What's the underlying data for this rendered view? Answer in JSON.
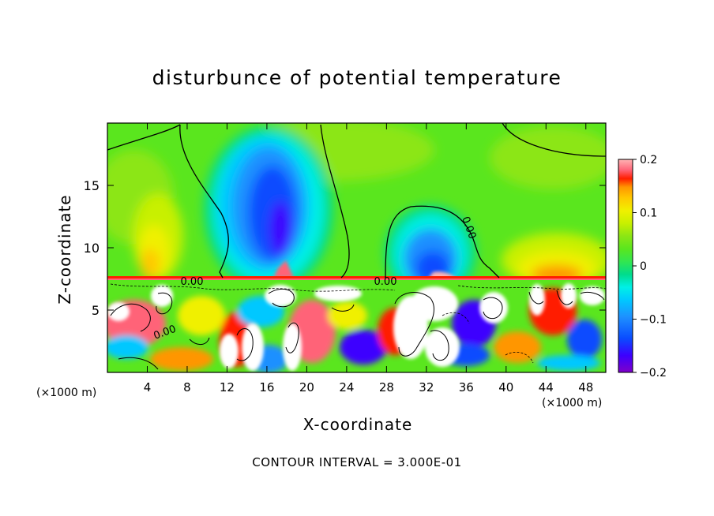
{
  "chart_data": {
    "type": "heatmap",
    "title": "disturbunce of potential temperature",
    "xlabel": "X-coordinate",
    "ylabel": "Z-coordinate",
    "x_unit_label": "(×1000 m)",
    "x_ticks": [
      4,
      8,
      12,
      16,
      20,
      24,
      28,
      32,
      36,
      40,
      44,
      48
    ],
    "y_ticks": [
      5,
      10,
      15
    ],
    "xlim": [
      0,
      50
    ],
    "ylim": [
      0,
      20
    ],
    "colorbar": {
      "ticks": [
        "0.2",
        "0.1",
        "0",
        "−0.1",
        "−0.2"
      ],
      "tick_values": [
        0.2,
        0.1,
        0,
        -0.1,
        -0.2
      ],
      "range": [
        -0.2,
        0.2
      ],
      "colors": [
        "#7f00c8",
        "#3c00ff",
        "#0a4cff",
        "#1e90ff",
        "#00c8ff",
        "#00f0e6",
        "#00dc8c",
        "#32e650",
        "#5ae61e",
        "#8ce614",
        "#c8f000",
        "#f0f000",
        "#ffc800",
        "#ff9600",
        "#ff5a00",
        "#ff1e00",
        "#ff6478",
        "#ffb4b4"
      ]
    },
    "contour_labels": [
      "0.00",
      "0.00",
      "0.00",
      "0.00"
    ],
    "annotation": "CONTOUR INTERVAL = 3.000E-01"
  }
}
